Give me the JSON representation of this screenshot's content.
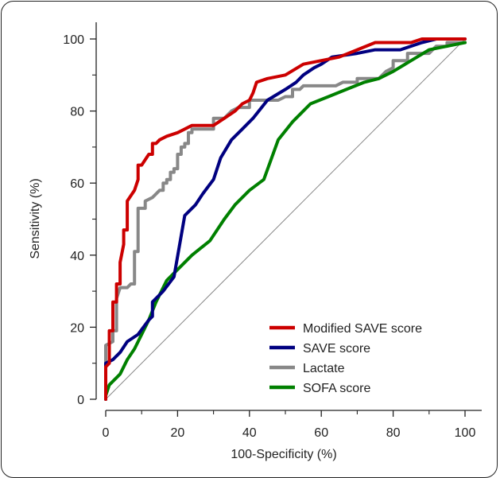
{
  "chart_data": {
    "type": "line",
    "xlabel": "100-Specificity (%)",
    "ylabel": "Sensitivity (%)",
    "xlim": [
      0,
      100
    ],
    "ylim": [
      0,
      100
    ],
    "xticks": [
      0,
      20,
      40,
      60,
      80,
      100
    ],
    "yticks": [
      0,
      20,
      40,
      60,
      80,
      100
    ],
    "grid": false,
    "legend_position": "bottom-right",
    "reference_line": {
      "from": [
        0,
        0
      ],
      "to": [
        100,
        100
      ],
      "color": "#888888"
    },
    "series": [
      {
        "name": "Modified SAVE score",
        "color": "#cc0000",
        "points": [
          [
            0,
            0
          ],
          [
            0,
            9
          ],
          [
            1,
            10
          ],
          [
            1,
            19
          ],
          [
            2,
            19
          ],
          [
            2,
            27
          ],
          [
            3,
            27
          ],
          [
            3,
            32
          ],
          [
            4,
            32
          ],
          [
            4,
            38
          ],
          [
            5,
            43
          ],
          [
            5,
            47
          ],
          [
            6,
            47
          ],
          [
            6,
            55
          ],
          [
            8,
            58
          ],
          [
            9,
            61
          ],
          [
            9,
            65
          ],
          [
            10,
            65
          ],
          [
            12,
            68
          ],
          [
            13,
            68
          ],
          [
            13,
            71
          ],
          [
            14,
            71
          ],
          [
            15,
            72
          ],
          [
            17,
            73
          ],
          [
            20,
            74
          ],
          [
            22,
            75
          ],
          [
            24,
            76
          ],
          [
            26,
            76
          ],
          [
            30,
            76
          ],
          [
            33,
            78
          ],
          [
            36,
            80
          ],
          [
            38,
            82
          ],
          [
            40,
            83
          ],
          [
            41,
            85
          ],
          [
            42,
            88
          ],
          [
            45,
            89
          ],
          [
            50,
            90
          ],
          [
            55,
            93
          ],
          [
            60,
            94
          ],
          [
            65,
            95
          ],
          [
            70,
            97
          ],
          [
            75,
            99
          ],
          [
            85,
            99
          ],
          [
            88,
            100
          ],
          [
            100,
            100
          ]
        ]
      },
      {
        "name": "SAVE score",
        "color": "#000080",
        "points": [
          [
            0,
            0
          ],
          [
            0,
            10
          ],
          [
            2,
            11
          ],
          [
            4,
            13
          ],
          [
            6,
            16
          ],
          [
            9,
            18
          ],
          [
            12,
            22
          ],
          [
            13,
            23
          ],
          [
            13,
            27
          ],
          [
            16,
            30
          ],
          [
            19,
            34
          ],
          [
            22,
            51
          ],
          [
            25,
            54
          ],
          [
            27,
            57
          ],
          [
            30,
            61
          ],
          [
            32,
            67
          ],
          [
            35,
            72
          ],
          [
            38,
            75
          ],
          [
            41,
            78
          ],
          [
            45,
            83
          ],
          [
            50,
            86
          ],
          [
            53,
            88
          ],
          [
            55,
            90
          ],
          [
            58,
            92
          ],
          [
            60,
            93
          ],
          [
            63,
            95
          ],
          [
            70,
            96
          ],
          [
            75,
            97
          ],
          [
            82,
            97
          ],
          [
            88,
            99
          ],
          [
            92,
            100
          ],
          [
            100,
            100
          ]
        ]
      },
      {
        "name": "Lactate",
        "color": "#888888",
        "points": [
          [
            0,
            0
          ],
          [
            0,
            15
          ],
          [
            2,
            16
          ],
          [
            2,
            19
          ],
          [
            3,
            19
          ],
          [
            3,
            28
          ],
          [
            4,
            31
          ],
          [
            6,
            31
          ],
          [
            7,
            32
          ],
          [
            8,
            32
          ],
          [
            8,
            41
          ],
          [
            9,
            41
          ],
          [
            9,
            53
          ],
          [
            11,
            53
          ],
          [
            11,
            55
          ],
          [
            13,
            56
          ],
          [
            14,
            57
          ],
          [
            15,
            58
          ],
          [
            16,
            58
          ],
          [
            16,
            60
          ],
          [
            17,
            60
          ],
          [
            17,
            61
          ],
          [
            18,
            61
          ],
          [
            18,
            63
          ],
          [
            19,
            63
          ],
          [
            19,
            64
          ],
          [
            20,
            64
          ],
          [
            20,
            68
          ],
          [
            21,
            68
          ],
          [
            21,
            70
          ],
          [
            22,
            70
          ],
          [
            22,
            71
          ],
          [
            23,
            71
          ],
          [
            23,
            74
          ],
          [
            24,
            74
          ],
          [
            24,
            75
          ],
          [
            30,
            75
          ],
          [
            30,
            78
          ],
          [
            33,
            78
          ],
          [
            35,
            80
          ],
          [
            37,
            81
          ],
          [
            40,
            81
          ],
          [
            40,
            83
          ],
          [
            48,
            83
          ],
          [
            50,
            84
          ],
          [
            52,
            84
          ],
          [
            52,
            86
          ],
          [
            54,
            86
          ],
          [
            55,
            87
          ],
          [
            64,
            87
          ],
          [
            66,
            88
          ],
          [
            70,
            88
          ],
          [
            70,
            89
          ],
          [
            76,
            89
          ],
          [
            78,
            91
          ],
          [
            80,
            92
          ],
          [
            80,
            94
          ],
          [
            84,
            94
          ],
          [
            84,
            96
          ],
          [
            90,
            96
          ],
          [
            92,
            98
          ],
          [
            95,
            98
          ],
          [
            95,
            99
          ],
          [
            100,
            99
          ]
        ]
      },
      {
        "name": "SOFA score",
        "color": "#008000",
        "points": [
          [
            0,
            0
          ],
          [
            0,
            1
          ],
          [
            1,
            4
          ],
          [
            4,
            7
          ],
          [
            6,
            11
          ],
          [
            8,
            14
          ],
          [
            10,
            18
          ],
          [
            12,
            22
          ],
          [
            14,
            27
          ],
          [
            17,
            33
          ],
          [
            21,
            37
          ],
          [
            24,
            40
          ],
          [
            29,
            44
          ],
          [
            33,
            50
          ],
          [
            36,
            54
          ],
          [
            40,
            58
          ],
          [
            44,
            61
          ],
          [
            48,
            72
          ],
          [
            52,
            77
          ],
          [
            57,
            82
          ],
          [
            62,
            84
          ],
          [
            67,
            86
          ],
          [
            72,
            88
          ],
          [
            76,
            89
          ],
          [
            80,
            91
          ],
          [
            85,
            94
          ],
          [
            90,
            97
          ],
          [
            95,
            98
          ],
          [
            100,
            99
          ]
        ]
      }
    ]
  }
}
